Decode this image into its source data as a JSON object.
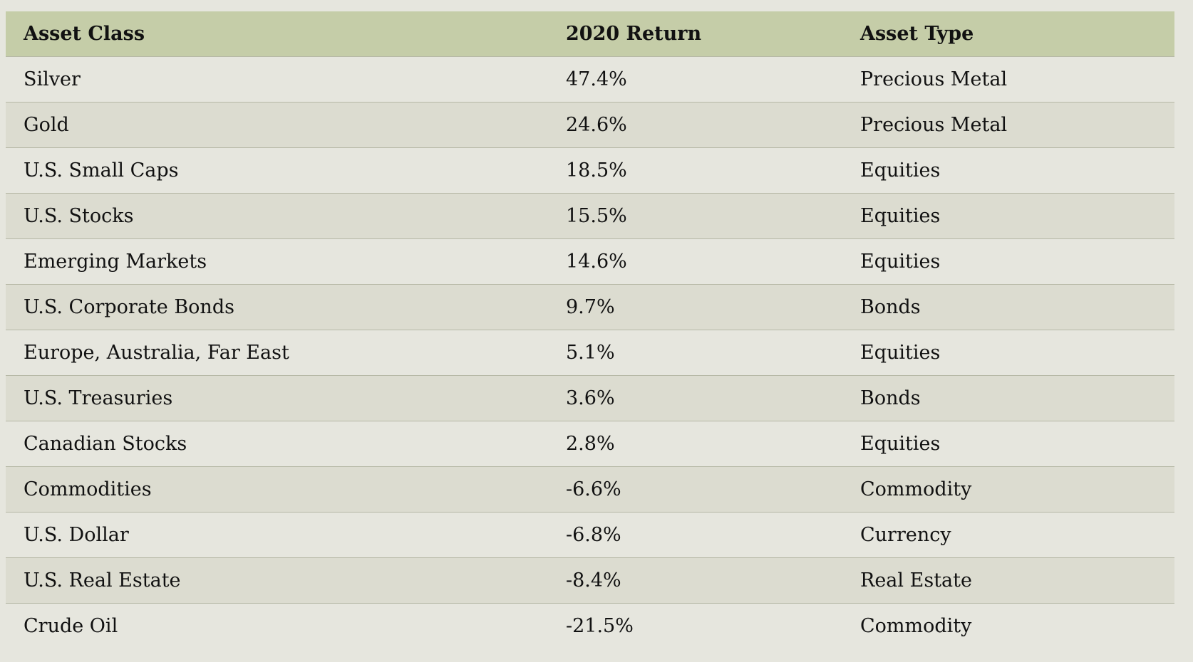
{
  "table": {
    "header": [
      "Asset Class",
      "2020 Return",
      "Asset Type"
    ],
    "rows": [
      [
        "Silver",
        "47.4%",
        "Precious Metal"
      ],
      [
        "Gold",
        "24.6%",
        "Precious Metal"
      ],
      [
        "U.S. Small Caps",
        "18.5%",
        "Equities"
      ],
      [
        "U.S. Stocks",
        "15.5%",
        "Equities"
      ],
      [
        "Emerging Markets",
        "14.6%",
        "Equities"
      ],
      [
        "U.S. Corporate Bonds",
        "9.7%",
        "Bonds"
      ],
      [
        "Europe, Australia, Far East",
        "5.1%",
        "Equities"
      ],
      [
        "U.S. Treasuries",
        "3.6%",
        "Bonds"
      ],
      [
        "Canadian Stocks",
        "2.8%",
        "Equities"
      ],
      [
        "Commodities",
        "-6.6%",
        "Commodity"
      ],
      [
        "U.S. Dollar",
        "-6.8%",
        "Currency"
      ],
      [
        "U.S. Real Estate",
        "-8.4%",
        "Real Estate"
      ],
      [
        "Crude Oil",
        "-21.5%",
        "Commodity"
      ]
    ]
  }
}
